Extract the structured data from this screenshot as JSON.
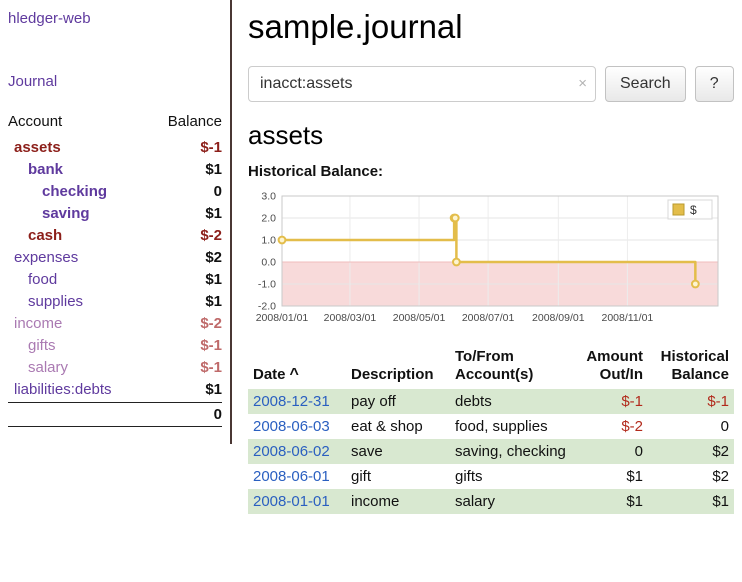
{
  "colors": {
    "link_purple": "#5f3a9e",
    "link_purple_light": "#aa7ab2",
    "date_blue": "#2a5fc0",
    "negative_dark": "#8c1f1a",
    "negative_light": "#bf6a6a",
    "row_shade_green": "#d8e8d0",
    "chart_line_gold": "#e3bd4a",
    "chart_negative_pink": "#f8dada",
    "divider_dark": "#4a3734"
  },
  "sidebar": {
    "title": "hledger-web",
    "journal_label": "Journal",
    "accounts": {
      "header_account": "Account",
      "header_balance": "Balance",
      "rows": [
        {
          "name": "assets",
          "balance": "$-1"
        },
        {
          "name": "bank",
          "balance": "$1"
        },
        {
          "name": "checking",
          "balance": "0"
        },
        {
          "name": "saving",
          "balance": "$1"
        },
        {
          "name": "cash",
          "balance": "$-2"
        },
        {
          "name": "expenses",
          "balance": "$2"
        },
        {
          "name": "food",
          "balance": "$1"
        },
        {
          "name": "supplies",
          "balance": "$1"
        },
        {
          "name": "income",
          "balance": "$-2"
        },
        {
          "name": "gifts",
          "balance": "$-1"
        },
        {
          "name": "salary",
          "balance": "$-1"
        },
        {
          "name": "liabilities:debts",
          "balance": "$1"
        }
      ],
      "total": "0"
    }
  },
  "main": {
    "title": "sample.journal",
    "search": {
      "value": "inacct:assets",
      "clear_icon": "×",
      "button_label": "Search",
      "help_label": "?"
    },
    "account_heading": "assets",
    "chart_title": "Historical Balance:"
  },
  "chart_data": {
    "type": "line",
    "step": true,
    "title": "Historical Balance:",
    "ylim": [
      -2,
      3
    ],
    "yticks": [
      3.0,
      2.0,
      1.0,
      0.0,
      -1.0,
      -2.0
    ],
    "xlim": [
      "2008-01-01",
      "2009-01-20"
    ],
    "xticks": [
      {
        "date": "2008-01-01",
        "label": "2008/01/01"
      },
      {
        "date": "2008-03-01",
        "label": "2008/03/01"
      },
      {
        "date": "2008-05-01",
        "label": "2008/05/01"
      },
      {
        "date": "2008-07-01",
        "label": "2008/07/01"
      },
      {
        "date": "2008-09-01",
        "label": "2008/09/01"
      },
      {
        "date": "2008-11-01",
        "label": "2008/11/01"
      }
    ],
    "series": [
      {
        "name": "$",
        "points": [
          [
            "2008-01-01",
            1
          ],
          [
            "2008-06-01",
            2
          ],
          [
            "2008-06-02",
            2
          ],
          [
            "2008-06-03",
            0
          ],
          [
            "2008-12-31",
            -1
          ]
        ]
      }
    ],
    "legend_position": "top-right",
    "grid": true,
    "line_color": "#e3bd4a",
    "negative_region_fill": "#f8dada"
  },
  "register": {
    "headers": {
      "date": "Date",
      "sort_icon": "^",
      "description": "Description",
      "accounts": "To/From\nAccount(s)",
      "amount": "Amount\nOut/In",
      "balance": "Historical\nBalance"
    },
    "rows": [
      {
        "date": "2008-12-31",
        "description": "pay off",
        "accounts": "debts",
        "amount": "$-1",
        "balance": "$-1"
      },
      {
        "date": "2008-06-03",
        "description": "eat & shop",
        "accounts": "food, supplies",
        "amount": "$-2",
        "balance": "0"
      },
      {
        "date": "2008-06-02",
        "description": "save",
        "accounts": "saving, checking",
        "amount": "0",
        "balance": "$2"
      },
      {
        "date": "2008-06-01",
        "description": "gift",
        "accounts": "gifts",
        "amount": "$1",
        "balance": "$2"
      },
      {
        "date": "2008-01-01",
        "description": "income",
        "accounts": "salary",
        "amount": "$1",
        "balance": "$1"
      }
    ]
  }
}
